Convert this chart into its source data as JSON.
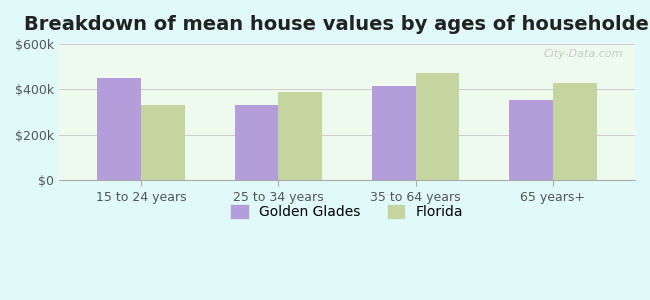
{
  "title": "Breakdown of mean house values by ages of householders",
  "categories": [
    "15 to 24 years",
    "25 to 34 years",
    "35 to 64 years",
    "65 years+"
  ],
  "golden_glades": [
    450000,
    330000,
    415000,
    355000
  ],
  "florida": [
    330000,
    390000,
    470000,
    430000
  ],
  "bar_color_gg": "#b39ddb",
  "bar_color_fl": "#c5d5a0",
  "ylim": [
    0,
    600000
  ],
  "yticks": [
    0,
    200000,
    400000,
    600000
  ],
  "ytick_labels": [
    "$0",
    "$200k",
    "$400k",
    "$600k"
  ],
  "background_color": "#e0fafa",
  "plot_bg_top": "#e8f5e9",
  "plot_bg_bottom": "#f5fff5",
  "legend_gg": "Golden Glades",
  "legend_fl": "Florida",
  "watermark": "City-Data.com",
  "title_fontsize": 14,
  "tick_fontsize": 9,
  "legend_fontsize": 10
}
